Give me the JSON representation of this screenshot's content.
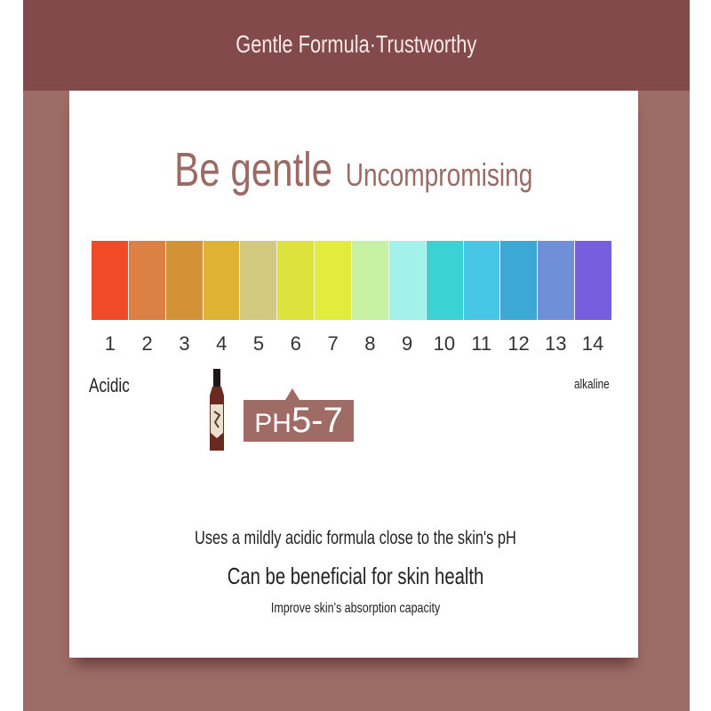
{
  "header": {
    "title": "Gentle Formula·Trustworthy"
  },
  "headline": {
    "main": "Be gentle",
    "sub": "Uncompromising"
  },
  "ph_scale": {
    "labels": [
      "1",
      "2",
      "3",
      "4",
      "5",
      "6",
      "7",
      "8",
      "9",
      "10",
      "11",
      "12",
      "13",
      "14"
    ],
    "colors": [
      "#f04b26",
      "#dc8043",
      "#d49237",
      "#deb232",
      "#d2c87e",
      "#dde23d",
      "#e2ec3c",
      "#c6f0a2",
      "#a2f1ea",
      "#3bd2d4",
      "#47c6e8",
      "#3ba8d5",
      "#6f8fd8",
      "#765fdf"
    ],
    "acidic_label": "Acidic",
    "alkaline_label": "alkaline"
  },
  "product": {
    "ph_prefix": "PH",
    "ph_range": "5-7",
    "box_color": "#9e6b65"
  },
  "text": {
    "line1": "Uses a mildly acidic formula close to the skin's pH",
    "line2": "Can be beneficial for skin health",
    "line3": "Improve skin's absorption capacity"
  }
}
